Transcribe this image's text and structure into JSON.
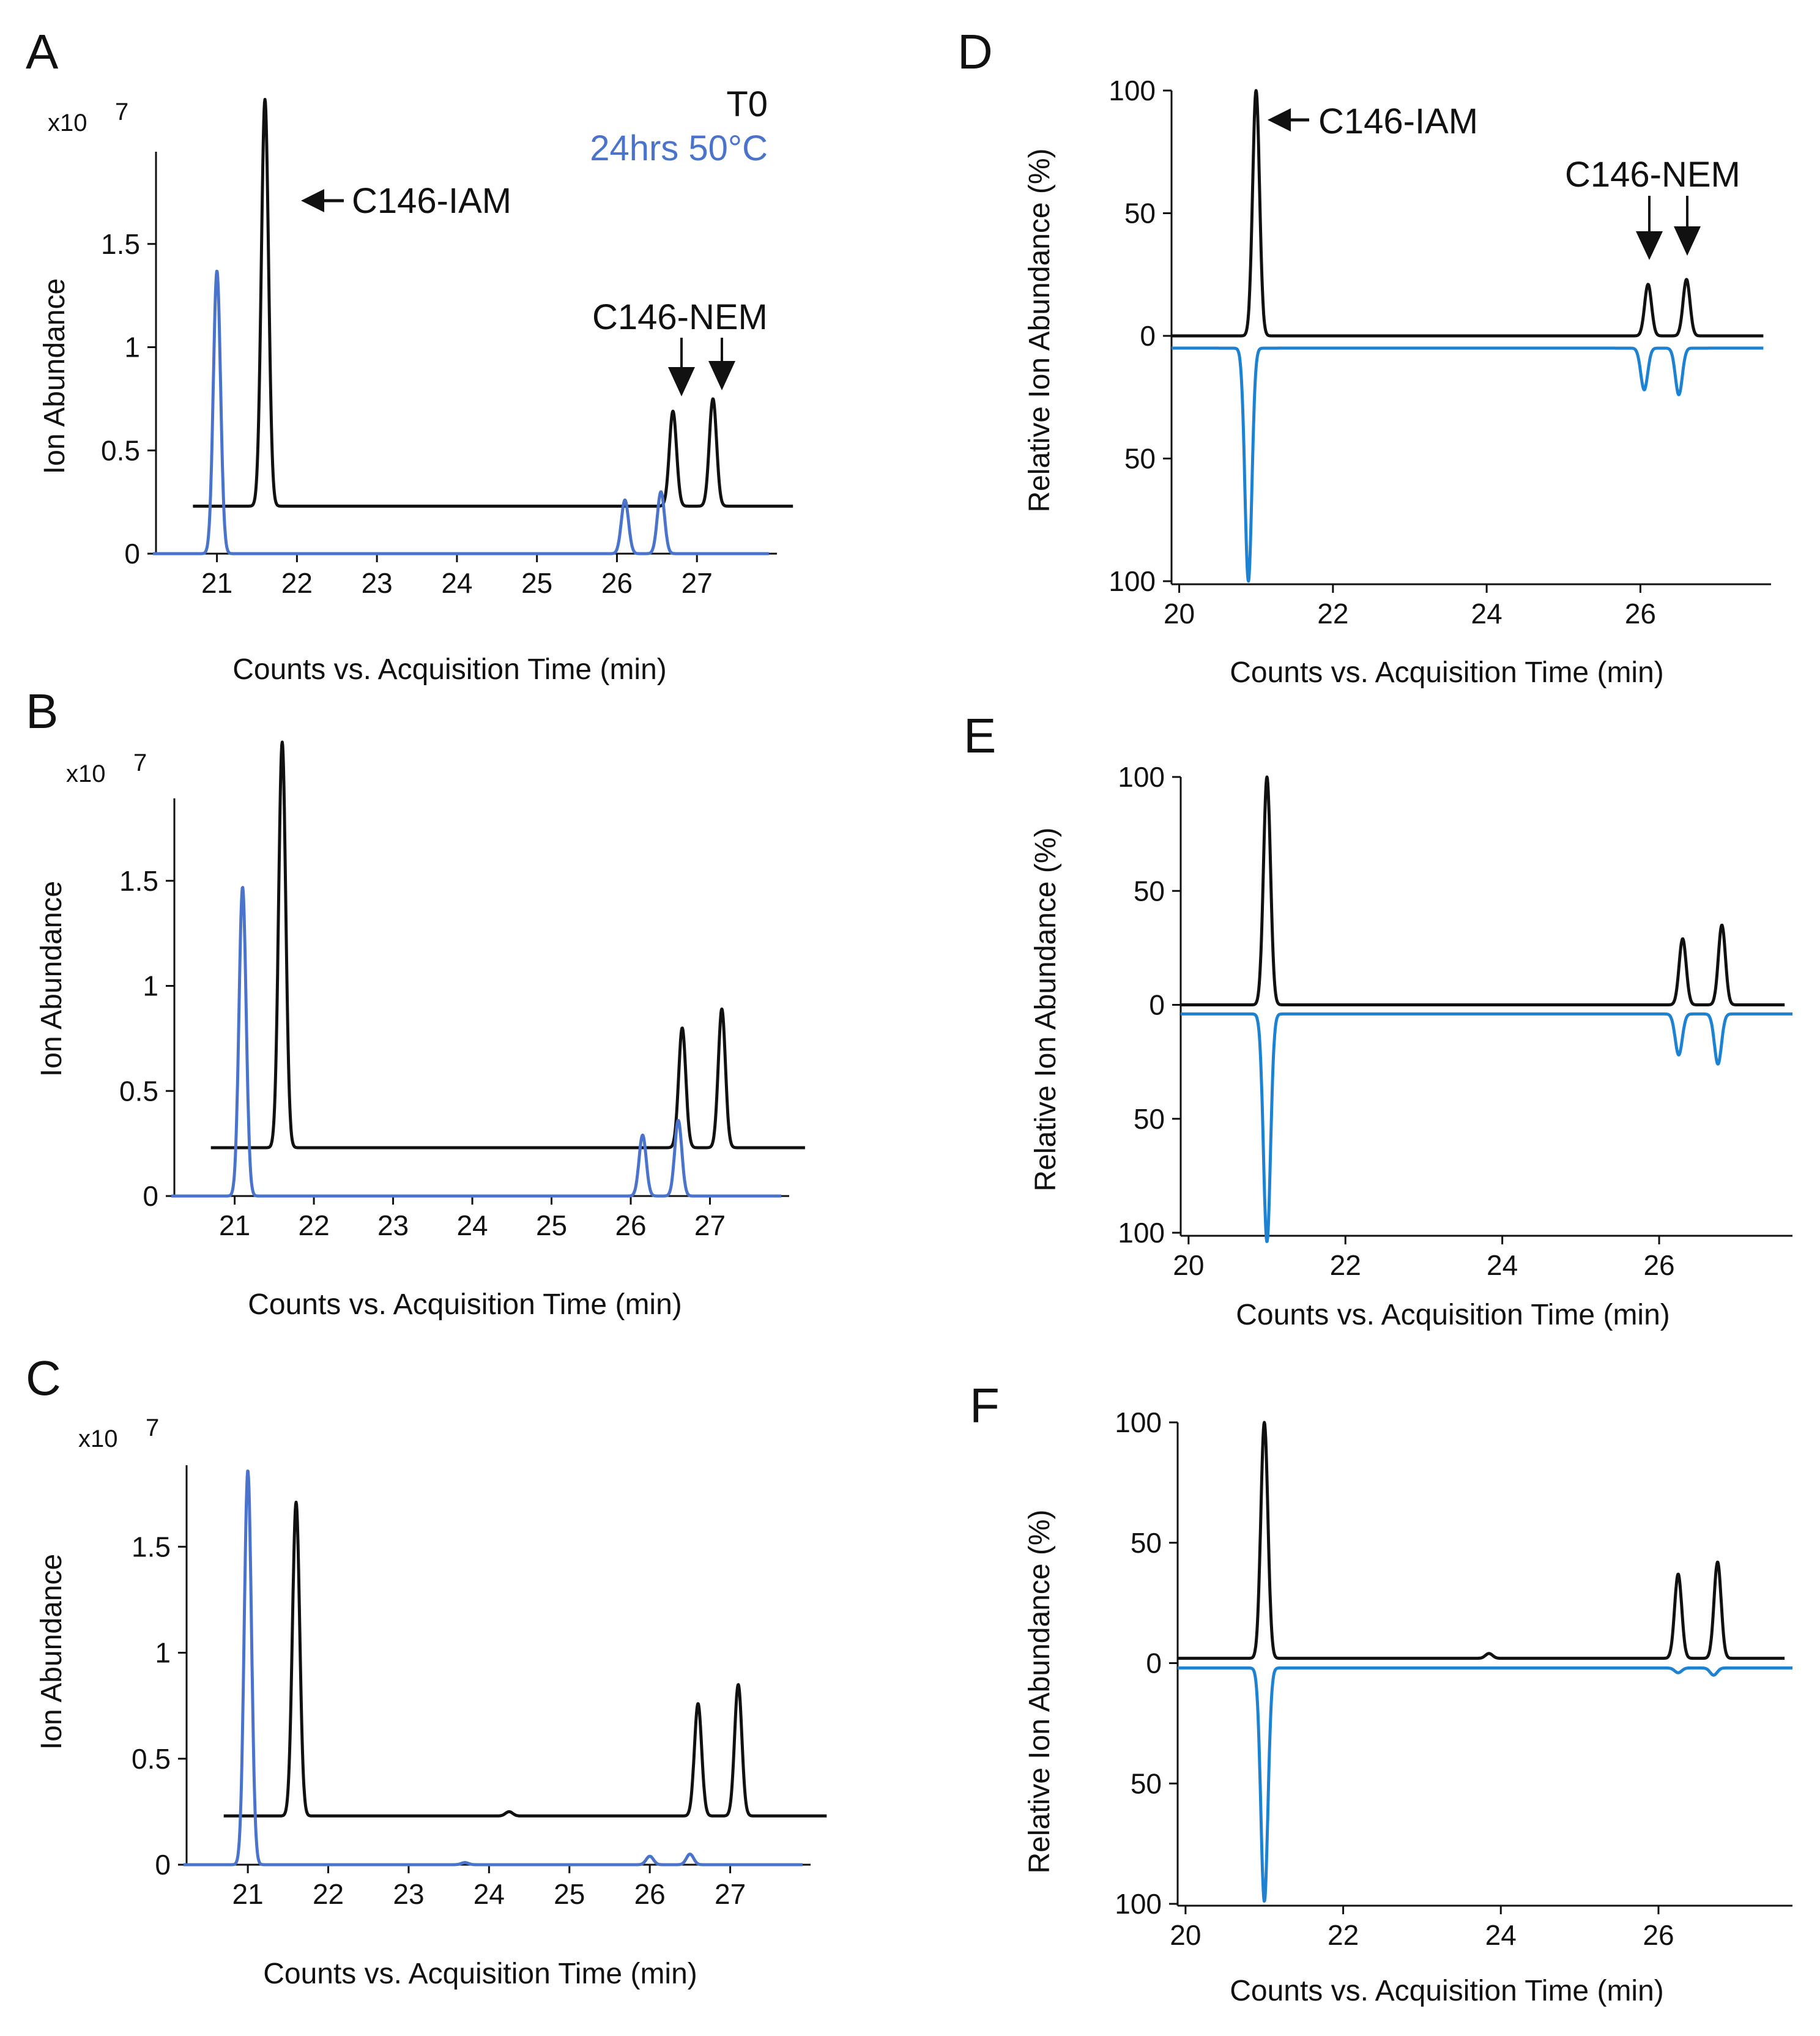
{
  "figure": {
    "legend": {
      "t0": "T0",
      "stressed": "24hrs 50°C",
      "t0_color": "#111111",
      "stressed_color_abs": "#4a74cc",
      "stressed_color_rel": "#1e82d2"
    },
    "annotations": {
      "iam": "C146-IAM",
      "nem": "C146-NEM"
    }
  },
  "chart_data": [
    {
      "panel": "A",
      "type": "line",
      "ylabel": "Ion Abundance",
      "multiplier": "x10",
      "multiplier_exp": "7",
      "xlabel": "Counts vs. Acquisition Time (min)",
      "x_ticks": [
        "21",
        "22",
        "23",
        "24",
        "25",
        "26",
        "27"
      ],
      "y_ticks": [
        "0",
        "0.5",
        "1",
        "1.5"
      ],
      "xlim": [
        20.2,
        28.0
      ],
      "ylim": [
        0,
        2.0
      ],
      "series": [
        {
          "name": "T0",
          "offset": 0.23,
          "x_start": 20.7,
          "x_end": 28.2,
          "baseline": 0,
          "peaks": [
            {
              "rt": 21.6,
              "height": 1.97
            },
            {
              "rt": 26.7,
              "height": 0.46
            },
            {
              "rt": 27.2,
              "height": 0.52
            }
          ]
        },
        {
          "name": "24hrs 50°C",
          "offset": 0.0,
          "x_start": 20.2,
          "x_end": 27.9,
          "baseline": 0,
          "peaks": [
            {
              "rt": 21.0,
              "height": 1.37
            },
            {
              "rt": 26.1,
              "height": 0.26
            },
            {
              "rt": 26.55,
              "height": 0.3
            }
          ]
        }
      ]
    },
    {
      "panel": "B",
      "type": "line",
      "ylabel": "Ion Abundance",
      "multiplier": "x10",
      "multiplier_exp": "7",
      "xlabel": "Counts vs. Acquisition Time (min)",
      "x_ticks": [
        "21",
        "22",
        "23",
        "24",
        "25",
        "26",
        "27"
      ],
      "y_ticks": [
        "0",
        "0.5",
        "1",
        "1.5"
      ],
      "xlim": [
        20.2,
        28.0
      ],
      "ylim": [
        0,
        2.0
      ],
      "series": [
        {
          "name": "T0",
          "offset": 0.23,
          "x_start": 20.7,
          "x_end": 28.2,
          "baseline": 0,
          "peaks": [
            {
              "rt": 21.6,
              "height": 1.93
            },
            {
              "rt": 26.65,
              "height": 0.57
            },
            {
              "rt": 27.15,
              "height": 0.66
            }
          ]
        },
        {
          "name": "24hrs 50°C",
          "offset": 0.0,
          "x_start": 20.2,
          "x_end": 27.9,
          "baseline": 0,
          "peaks": [
            {
              "rt": 21.1,
              "height": 1.47
            },
            {
              "rt": 26.15,
              "height": 0.29
            },
            {
              "rt": 26.6,
              "height": 0.36
            }
          ]
        }
      ]
    },
    {
      "panel": "C",
      "type": "line",
      "ylabel": "Ion Abundance",
      "multiplier": "x10",
      "multiplier_exp": "7",
      "xlabel": "Counts vs. Acquisition Time (min)",
      "x_ticks": [
        "21",
        "22",
        "23",
        "24",
        "25",
        "26",
        "27"
      ],
      "y_ticks": [
        "0",
        "0.5",
        "1",
        "1.5"
      ],
      "xlim": [
        20.2,
        28.0
      ],
      "ylim": [
        0,
        2.0
      ],
      "series": [
        {
          "name": "T0",
          "offset": 0.23,
          "x_start": 20.7,
          "x_end": 28.2,
          "baseline": 0,
          "peaks": [
            {
              "rt": 21.6,
              "height": 1.48
            },
            {
              "rt": 24.25,
              "height": 0.02
            },
            {
              "rt": 26.6,
              "height": 0.53
            },
            {
              "rt": 27.1,
              "height": 0.62
            }
          ]
        },
        {
          "name": "24hrs 50°C",
          "offset": 0.0,
          "x_start": 20.2,
          "x_end": 27.9,
          "baseline": 0,
          "peaks": [
            {
              "rt": 21.0,
              "height": 1.86
            },
            {
              "rt": 23.7,
              "height": 0.01
            },
            {
              "rt": 26.0,
              "height": 0.04
            },
            {
              "rt": 26.5,
              "height": 0.05
            }
          ]
        }
      ]
    },
    {
      "panel": "D",
      "type": "line",
      "mirror": true,
      "ylabel": "Relative Ion Abundance (%)",
      "xlabel": "Counts vs. Acquisition Time (min)",
      "x_ticks": [
        "20",
        "22",
        "24",
        "26"
      ],
      "y_ticks_top": [
        "100",
        "50",
        "0"
      ],
      "y_ticks_bottom": [
        "50",
        "100"
      ],
      "xlim": [
        19.9,
        27.7
      ],
      "ylim": [
        -100,
        100
      ],
      "series": [
        {
          "name": "T0",
          "direction": 1,
          "offset": 0,
          "x_start": 19.9,
          "x_end": 27.6,
          "peaks": [
            {
              "rt": 21.0,
              "height": 100
            },
            {
              "rt": 26.1,
              "height": 21
            },
            {
              "rt": 26.6,
              "height": 23
            }
          ]
        },
        {
          "name": "24hrs 50°C",
          "direction": -1,
          "offset": -5,
          "x_start": 19.9,
          "x_end": 27.6,
          "peaks": [
            {
              "rt": 20.9,
              "height": 95
            },
            {
              "rt": 26.05,
              "height": 17
            },
            {
              "rt": 26.5,
              "height": 19
            }
          ]
        }
      ]
    },
    {
      "panel": "E",
      "type": "line",
      "mirror": true,
      "ylabel": "Relative Ion Abundance (%)",
      "xlabel": "Counts vs. Acquisition Time (min)",
      "x_ticks": [
        "20",
        "22",
        "24",
        "26"
      ],
      "y_ticks_top": [
        "100",
        "50",
        "0"
      ],
      "y_ticks_bottom": [
        "50",
        "100"
      ],
      "xlim": [
        19.9,
        27.7
      ],
      "ylim": [
        -100,
        100
      ],
      "series": [
        {
          "name": "T0",
          "direction": 1,
          "offset": 0,
          "x_start": 19.9,
          "x_end": 27.6,
          "peaks": [
            {
              "rt": 21.0,
              "height": 100
            },
            {
              "rt": 26.3,
              "height": 29
            },
            {
              "rt": 26.8,
              "height": 35
            }
          ]
        },
        {
          "name": "24hrs 50°C",
          "direction": -1,
          "offset": -4,
          "x_start": 19.9,
          "x_end": 27.7,
          "peaks": [
            {
              "rt": 21.0,
              "height": 100
            },
            {
              "rt": 26.25,
              "height": 18
            },
            {
              "rt": 26.75,
              "height": 22
            }
          ]
        }
      ]
    },
    {
      "panel": "F",
      "type": "line",
      "mirror": true,
      "ylabel": "Relative Ion Abundance (%)",
      "xlabel": "Counts vs. Acquisition Time (min)",
      "x_ticks": [
        "20",
        "22",
        "24",
        "26"
      ],
      "y_ticks_top": [
        "100",
        "50",
        "0"
      ],
      "y_ticks_bottom": [
        "50",
        "100"
      ],
      "xlim": [
        19.9,
        27.7
      ],
      "ylim": [
        -100,
        100
      ],
      "series": [
        {
          "name": "T0",
          "direction": 1,
          "offset": 2,
          "x_start": 19.9,
          "x_end": 27.6,
          "peaks": [
            {
              "rt": 21.0,
              "height": 98
            },
            {
              "rt": 23.85,
              "height": 2
            },
            {
              "rt": 26.25,
              "height": 35
            },
            {
              "rt": 26.75,
              "height": 40
            }
          ]
        },
        {
          "name": "24hrs 50°C",
          "direction": -1,
          "offset": -2,
          "x_start": 19.9,
          "x_end": 27.7,
          "peaks": [
            {
              "rt": 21.0,
              "height": 97
            },
            {
              "rt": 26.25,
              "height": 2
            },
            {
              "rt": 26.7,
              "height": 3
            }
          ]
        }
      ]
    }
  ]
}
